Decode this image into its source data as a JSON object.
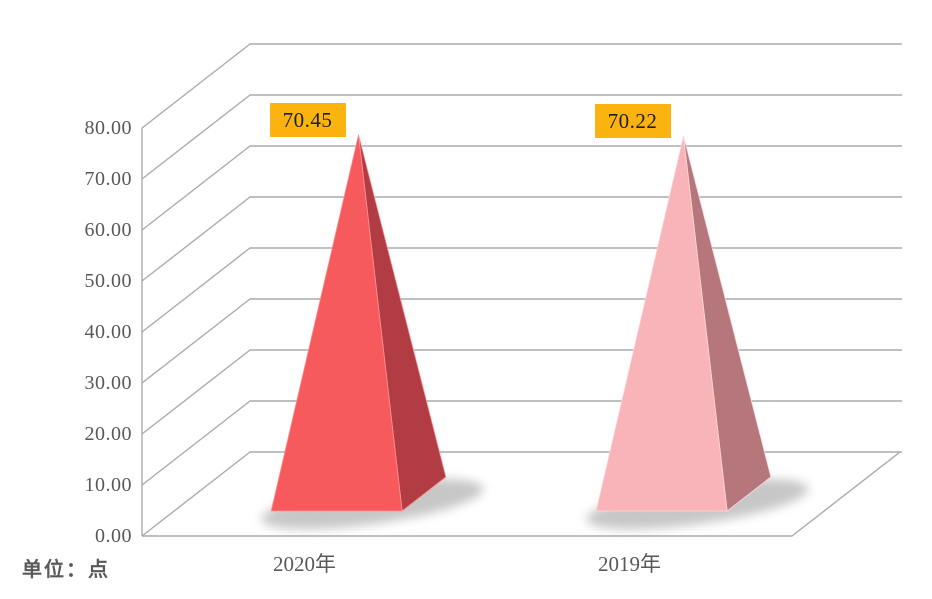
{
  "chart_data": {
    "type": "bar",
    "subtype": "3d-pyramid",
    "title": "",
    "unit_label": "单位：点",
    "categories": [
      "2020年",
      "2019年"
    ],
    "values": [
      70.45,
      70.22
    ],
    "data_labels": [
      "70.45",
      "70.22"
    ],
    "ylim": [
      0,
      80
    ],
    "ytick_step": 10,
    "ytick_labels": [
      "0.00",
      "10.00",
      "20.00",
      "30.00",
      "40.00",
      "50.00",
      "60.00",
      "70.00",
      "80.00"
    ],
    "grid": true,
    "legend_position": "none",
    "colors": {
      "front": [
        "#F75A5D",
        "#F9B4B9"
      ],
      "side": [
        "#B23C43",
        "#B5777C"
      ],
      "edge_highlight": [
        "#FF9296",
        "#FFD6DA"
      ],
      "data_label_bg": "#FBB30F",
      "data_label_text": "#1F1F1F",
      "gridline": "#ABABAB",
      "axis_text": "#595959",
      "shadow": "#9A9A9A",
      "background": "#FFFFFF"
    }
  }
}
